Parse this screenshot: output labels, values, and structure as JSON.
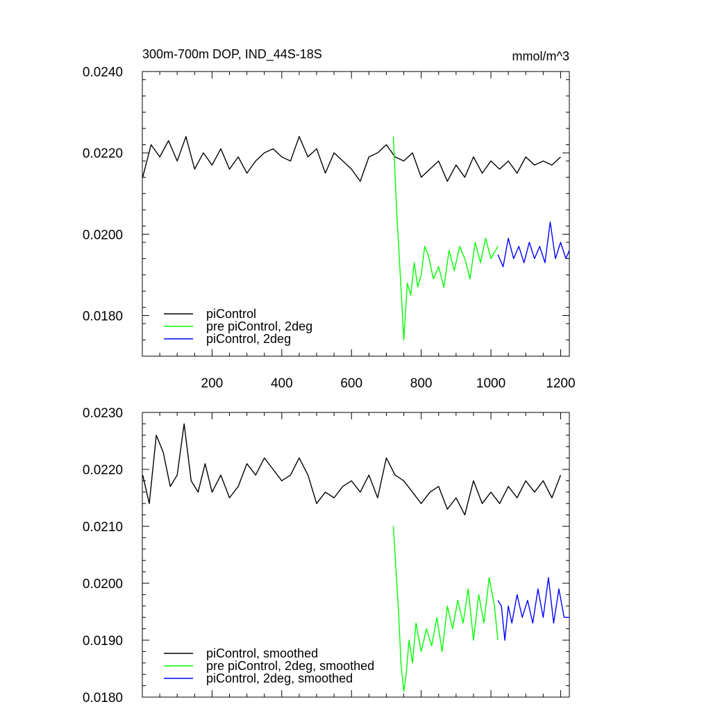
{
  "chart_data": [
    {
      "type": "line",
      "title": "300m-700m DOP, IND_44S-18S",
      "units": "mmol/m^3",
      "xlim": [
        0,
        1225
      ],
      "ylim": [
        0.017,
        0.024
      ],
      "yticks": [
        "0.0180",
        "0.0200",
        "0.0220",
        "0.0240"
      ],
      "xticks": [
        "200",
        "400",
        "600",
        "800",
        "1000",
        "1200"
      ],
      "legend_placement": "bottom-left",
      "series": [
        {
          "name": "piControl",
          "color": "#000000",
          "x": [
            1,
            25,
            50,
            75,
            100,
            125,
            150,
            175,
            200,
            225,
            250,
            275,
            300,
            325,
            350,
            375,
            400,
            425,
            450,
            475,
            500,
            525,
            550,
            575,
            600,
            625,
            650,
            675,
            700,
            725,
            750,
            775,
            800,
            825,
            850,
            875,
            900,
            925,
            950,
            975,
            1000,
            1025,
            1050,
            1075,
            1100,
            1125,
            1150,
            1175,
            1200
          ],
          "y": [
            0.0214,
            0.0222,
            0.0219,
            0.0223,
            0.0218,
            0.0224,
            0.0216,
            0.022,
            0.0217,
            0.0221,
            0.0216,
            0.0219,
            0.0215,
            0.0218,
            0.022,
            0.0221,
            0.0219,
            0.0218,
            0.0224,
            0.0219,
            0.0221,
            0.0215,
            0.022,
            0.0218,
            0.0216,
            0.0213,
            0.0219,
            0.022,
            0.0222,
            0.0219,
            0.0218,
            0.022,
            0.0214,
            0.0216,
            0.0218,
            0.0213,
            0.0217,
            0.0214,
            0.0219,
            0.0215,
            0.0218,
            0.0216,
            0.0218,
            0.0215,
            0.0219,
            0.0217,
            0.0218,
            0.0217,
            0.0219
          ]
        },
        {
          "name": "pre piControl, 2deg",
          "color": "#00ff00",
          "x": [
            720,
            730,
            740,
            750,
            760,
            770,
            780,
            790,
            800,
            810,
            820,
            835,
            850,
            865,
            880,
            895,
            910,
            925,
            940,
            955,
            970,
            985,
            1000,
            1020
          ],
          "y": [
            0.0224,
            0.0205,
            0.019,
            0.0174,
            0.0188,
            0.0185,
            0.0193,
            0.0187,
            0.019,
            0.0197,
            0.0195,
            0.0189,
            0.0192,
            0.0187,
            0.0196,
            0.0191,
            0.0197,
            0.0194,
            0.0189,
            0.0198,
            0.0193,
            0.0199,
            0.0194,
            0.0197
          ]
        },
        {
          "name": "piControl, 2deg",
          "color": "#0000ff",
          "x": [
            1020,
            1035,
            1050,
            1065,
            1080,
            1095,
            1110,
            1125,
            1140,
            1155,
            1170,
            1185,
            1200,
            1215,
            1225
          ],
          "y": [
            0.0195,
            0.0192,
            0.0199,
            0.0194,
            0.0197,
            0.0193,
            0.0198,
            0.0194,
            0.0197,
            0.0193,
            0.0203,
            0.0194,
            0.0198,
            0.0194,
            0.0196
          ]
        }
      ]
    },
    {
      "type": "line",
      "title": "",
      "xlim": [
        0,
        1225
      ],
      "ylim": [
        0.018,
        0.023
      ],
      "yticks": [
        "0.0180",
        "0.0190",
        "0.0200",
        "0.0210",
        "0.0220",
        "0.0230"
      ],
      "legend_placement": "bottom-left",
      "series": [
        {
          "name": "piControl, smoothed",
          "color": "#000000",
          "x": [
            1,
            20,
            40,
            60,
            80,
            100,
            120,
            140,
            160,
            180,
            200,
            225,
            250,
            275,
            300,
            325,
            350,
            375,
            400,
            425,
            450,
            475,
            500,
            525,
            550,
            575,
            600,
            625,
            650,
            675,
            700,
            725,
            750,
            775,
            800,
            825,
            850,
            875,
            900,
            925,
            950,
            975,
            1000,
            1025,
            1050,
            1075,
            1100,
            1125,
            1150,
            1175,
            1200
          ],
          "y": [
            0.0219,
            0.0214,
            0.0226,
            0.0223,
            0.0217,
            0.0219,
            0.0228,
            0.0218,
            0.0216,
            0.0221,
            0.0216,
            0.0219,
            0.0215,
            0.0217,
            0.0221,
            0.0219,
            0.0222,
            0.022,
            0.0218,
            0.0219,
            0.0222,
            0.0219,
            0.0214,
            0.0216,
            0.0215,
            0.0217,
            0.0218,
            0.0216,
            0.0219,
            0.0215,
            0.0222,
            0.0219,
            0.0218,
            0.0216,
            0.0214,
            0.0216,
            0.0217,
            0.0213,
            0.0215,
            0.0212,
            0.0218,
            0.0214,
            0.0216,
            0.0214,
            0.0217,
            0.0215,
            0.0218,
            0.0216,
            0.0218,
            0.0215,
            0.0219
          ]
        },
        {
          "name": "pre piControl, 2deg, smoothed",
          "color": "#00ff00",
          "x": [
            720,
            727,
            735,
            742,
            750,
            757,
            765,
            775,
            785,
            800,
            815,
            830,
            845,
            860,
            875,
            890,
            905,
            920,
            935,
            950,
            965,
            980,
            995,
            1010,
            1020
          ],
          "y": [
            0.021,
            0.0203,
            0.0195,
            0.0186,
            0.0181,
            0.0184,
            0.019,
            0.0186,
            0.0193,
            0.0188,
            0.0192,
            0.0189,
            0.0194,
            0.0188,
            0.0196,
            0.0192,
            0.0197,
            0.0193,
            0.0199,
            0.019,
            0.0198,
            0.0193,
            0.0201,
            0.0196,
            0.019
          ]
        },
        {
          "name": "piControl, 2deg, smoothed",
          "color": "#0000ff",
          "x": [
            1020,
            1030,
            1040,
            1050,
            1060,
            1075,
            1090,
            1105,
            1120,
            1135,
            1150,
            1165,
            1180,
            1195,
            1210,
            1225
          ],
          "y": [
            0.0197,
            0.0196,
            0.019,
            0.0196,
            0.0193,
            0.0198,
            0.0194,
            0.0197,
            0.0193,
            0.0199,
            0.0194,
            0.0201,
            0.0193,
            0.0199,
            0.0194,
            0.0194
          ]
        }
      ]
    }
  ]
}
